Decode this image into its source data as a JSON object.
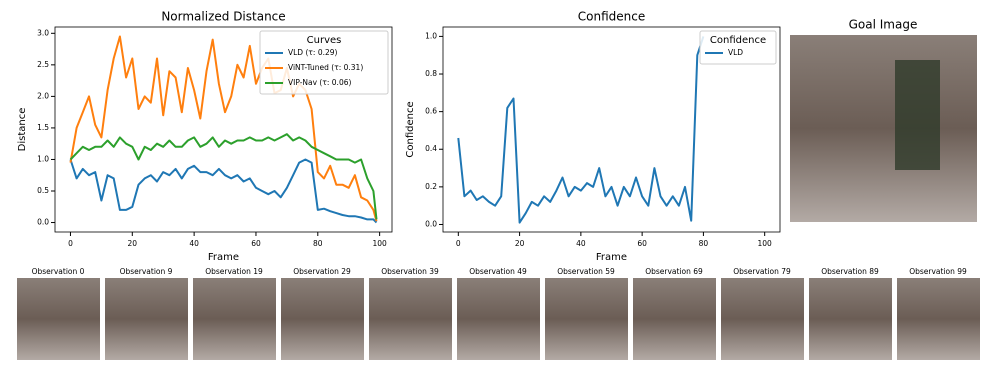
{
  "chart_data": [
    {
      "type": "line",
      "title": "Normalized Distance",
      "x_label": "Frame",
      "y_label": "Distance",
      "x": [
        0,
        2,
        4,
        6,
        8,
        10,
        12,
        14,
        16,
        18,
        20,
        22,
        24,
        26,
        28,
        30,
        32,
        34,
        36,
        38,
        40,
        42,
        44,
        46,
        48,
        50,
        52,
        54,
        56,
        58,
        60,
        62,
        64,
        66,
        68,
        70,
        72,
        74,
        76,
        78,
        80,
        82,
        84,
        86,
        88,
        90,
        92,
        94,
        96,
        98,
        99
      ],
      "series": [
        {
          "name": "VLD (τ: 0.29)",
          "color": "#1f77b4",
          "values": [
            1.0,
            0.7,
            0.85,
            0.75,
            0.8,
            0.35,
            0.75,
            0.7,
            0.2,
            0.2,
            0.25,
            0.6,
            0.7,
            0.75,
            0.65,
            0.8,
            0.75,
            0.85,
            0.7,
            0.85,
            0.9,
            0.8,
            0.8,
            0.75,
            0.85,
            0.75,
            0.7,
            0.75,
            0.65,
            0.7,
            0.55,
            0.5,
            0.45,
            0.5,
            0.4,
            0.55,
            0.75,
            0.95,
            1.0,
            0.95,
            0.2,
            0.22,
            0.18,
            0.15,
            0.12,
            0.1,
            0.1,
            0.08,
            0.05,
            0.05,
            0.0
          ]
        },
        {
          "name": "ViNT-Tuned (τ: 0.31)",
          "color": "#ff7f0e",
          "values": [
            0.95,
            1.5,
            1.75,
            2.0,
            1.55,
            1.35,
            2.1,
            2.6,
            2.95,
            2.3,
            2.6,
            1.8,
            2.0,
            1.9,
            2.6,
            1.7,
            2.4,
            2.3,
            1.75,
            2.45,
            2.1,
            1.65,
            2.4,
            2.9,
            2.2,
            1.75,
            2.0,
            2.5,
            2.3,
            2.8,
            2.2,
            2.45,
            2.6,
            2.05,
            2.1,
            2.45,
            2.0,
            2.2,
            2.1,
            1.8,
            0.8,
            0.7,
            0.9,
            0.6,
            0.6,
            0.55,
            0.75,
            0.4,
            0.35,
            0.2,
            0.02
          ]
        },
        {
          "name": "VIP-Nav (τ: 0.06)",
          "color": "#2ca02c",
          "values": [
            1.0,
            1.1,
            1.2,
            1.15,
            1.2,
            1.2,
            1.3,
            1.2,
            1.35,
            1.25,
            1.2,
            1.0,
            1.2,
            1.15,
            1.25,
            1.2,
            1.3,
            1.2,
            1.2,
            1.3,
            1.35,
            1.2,
            1.25,
            1.35,
            1.2,
            1.3,
            1.25,
            1.3,
            1.3,
            1.35,
            1.3,
            1.3,
            1.35,
            1.3,
            1.35,
            1.4,
            1.3,
            1.35,
            1.3,
            1.2,
            1.15,
            1.1,
            1.05,
            1.0,
            1.0,
            1.0,
            0.95,
            1.0,
            0.7,
            0.5,
            0.05
          ]
        }
      ],
      "legend_title": "Curves",
      "legend": "upper right",
      "xlim": [
        -5,
        104
      ],
      "xticks": [
        0,
        20,
        40,
        60,
        80,
        100
      ],
      "ylim": [
        -0.15,
        3.1
      ],
      "yticks": [
        {
          "value": 0,
          "label": "0.0"
        },
        0.5,
        {
          "value": 1,
          "label": "1.0"
        },
        1.5,
        {
          "value": 2,
          "label": "2.0"
        },
        2.5,
        {
          "value": 3,
          "label": "3.0"
        }
      ]
    },
    {
      "type": "line",
      "title": "Confidence",
      "x_label": "Frame",
      "y_label": "Confidence",
      "x": [
        0,
        2,
        4,
        6,
        8,
        10,
        12,
        14,
        16,
        18,
        20,
        22,
        24,
        26,
        28,
        30,
        32,
        34,
        36,
        38,
        40,
        42,
        44,
        46,
        48,
        50,
        52,
        54,
        56,
        58,
        60,
        62,
        64,
        66,
        68,
        70,
        72,
        74,
        76,
        78,
        80
      ],
      "series": [
        {
          "name": "VLD",
          "color": "#1f77b4",
          "values": [
            0.46,
            0.15,
            0.18,
            0.13,
            0.15,
            0.12,
            0.1,
            0.15,
            0.62,
            0.67,
            0.01,
            0.06,
            0.12,
            0.1,
            0.15,
            0.12,
            0.18,
            0.25,
            0.15,
            0.2,
            0.18,
            0.22,
            0.2,
            0.3,
            0.15,
            0.2,
            0.1,
            0.2,
            0.15,
            0.25,
            0.15,
            0.1,
            0.3,
            0.15,
            0.1,
            0.15,
            0.1,
            0.2,
            0.02,
            0.9,
            1.0
          ]
        }
      ],
      "legend_title": "Confidence",
      "legend": "upper right",
      "xlim": [
        -5,
        105
      ],
      "xticks": [
        0,
        20,
        40,
        60,
        80,
        100
      ],
      "ylim": [
        -0.04,
        1.05
      ],
      "yticks": [
        {
          "value": 0,
          "label": "0.0"
        },
        0.2,
        0.4,
        0.6,
        0.8,
        {
          "value": 1,
          "label": "1.0"
        }
      ]
    }
  ],
  "goal_image": {
    "title": "Goal Image"
  },
  "observations": [
    "Observation 0",
    "Observation 9",
    "Observation 19",
    "Observation 29",
    "Observation 39",
    "Observation 49",
    "Observation 59",
    "Observation 69",
    "Observation 79",
    "Observation 89",
    "Observation 99"
  ]
}
